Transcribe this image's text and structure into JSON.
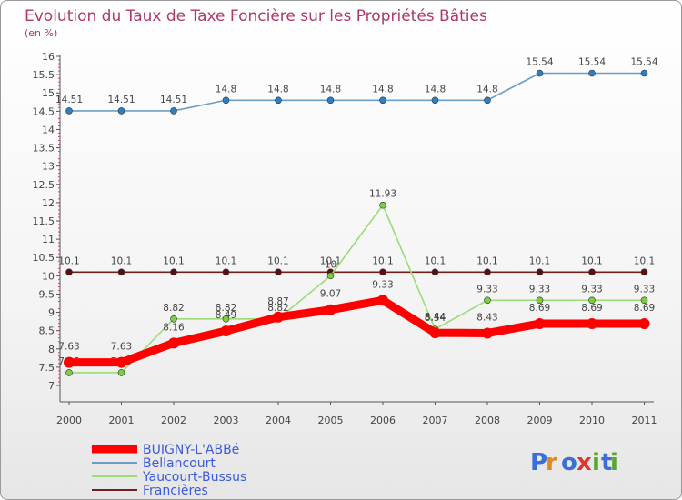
{
  "chart_data": {
    "type": "line",
    "title": "Evolution du Taux de Taxe Foncière sur les Propriétés Bâties",
    "subtitle": "(en %)",
    "xlabel": "",
    "ylabel": "",
    "ylim": [
      7,
      16
    ],
    "grid": false,
    "legend_position": "bottom-left",
    "x": [
      "2000",
      "2001",
      "2002",
      "2003",
      "2004",
      "2005",
      "2006",
      "2007",
      "2008",
      "2009",
      "2010",
      "2011"
    ],
    "yticks": [
      "7",
      "7.5",
      "8",
      "8.5",
      "9",
      "9.5",
      "10",
      "10.5",
      "11",
      "11.5",
      "12",
      "12.5",
      "13",
      "13.5",
      "14",
      "14.5",
      "15",
      "15.5",
      "16"
    ],
    "series": [
      {
        "name": "Bellancourt",
        "color": "#6a9ec9",
        "marker": "#2f7fc0",
        "values": [
          14.51,
          14.51,
          14.51,
          14.8,
          14.8,
          14.8,
          14.8,
          14.8,
          14.8,
          15.54,
          15.54,
          15.54
        ],
        "labels": [
          "14.51",
          "14.51",
          "14.51",
          "14.8",
          "14.8",
          "14.8",
          "14.8",
          "14.8",
          "14.8",
          "15.54",
          "15.54",
          "15.54"
        ]
      },
      {
        "name": "Francières",
        "color": "#6e1f1f",
        "marker": "#5a1010",
        "values": [
          10.1,
          10.1,
          10.1,
          10.1,
          10.1,
          10.1,
          10.1,
          10.1,
          10.1,
          10.1,
          10.1,
          10.1
        ],
        "labels": [
          "10.1",
          "10.1",
          "10.1",
          "10.1",
          "10.1",
          "10.1",
          "10.1",
          "10.1",
          "10.1",
          "10.1",
          "10.1",
          "10.1"
        ]
      },
      {
        "name": "Yaucourt-Bussus",
        "color": "#99dd77",
        "marker": "#7ccc44",
        "values": [
          7.35,
          7.35,
          8.82,
          8.82,
          8.82,
          10,
          11.93,
          8.54,
          9.33,
          9.33,
          9.33,
          9.33
        ],
        "labels": [
          "7.35",
          "7.35",
          "8.82",
          "8.82",
          "8.82",
          "10",
          "11.93",
          "8.54",
          "9.33",
          "9.33",
          "9.33",
          "9.33"
        ]
      },
      {
        "name": "BUIGNY-L'ABBé",
        "color": "#ff0000",
        "marker": "#ff0000",
        "values": [
          7.63,
          7.63,
          8.16,
          8.49,
          8.87,
          9.07,
          9.33,
          8.44,
          8.43,
          8.69,
          8.69,
          8.69
        ],
        "labels": [
          "7.63",
          "7.63",
          "8.16",
          "8.49",
          "8.87",
          "9.07",
          "9.33",
          "8.44",
          "8.43",
          "8.69",
          "8.69",
          "8.69"
        ]
      }
    ],
    "legend": [
      "BUIGNY-L'ABBé",
      "Bellancourt",
      "Yaucourt-Bussus",
      "Francières"
    ]
  },
  "branding": {
    "logo_text": [
      "P",
      "r",
      "o",
      "x",
      "i",
      "t",
      "i"
    ]
  }
}
